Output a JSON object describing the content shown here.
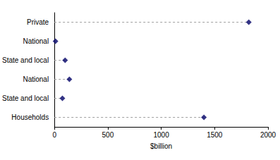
{
  "chart_data": {
    "type": "dot",
    "orientation": "horizontal",
    "categories": [
      "Private",
      "National",
      "State and local",
      "National",
      "State and local",
      "Households"
    ],
    "values": [
      1820,
      10,
      100,
      140,
      75,
      1400
    ],
    "color": "#000066",
    "marker": "diamond",
    "line_style": "dashed",
    "x_label": "$billion",
    "xlim": [
      0,
      2000
    ],
    "xticks": [
      0,
      500,
      1000,
      1500,
      2000
    ],
    "grid": false
  }
}
